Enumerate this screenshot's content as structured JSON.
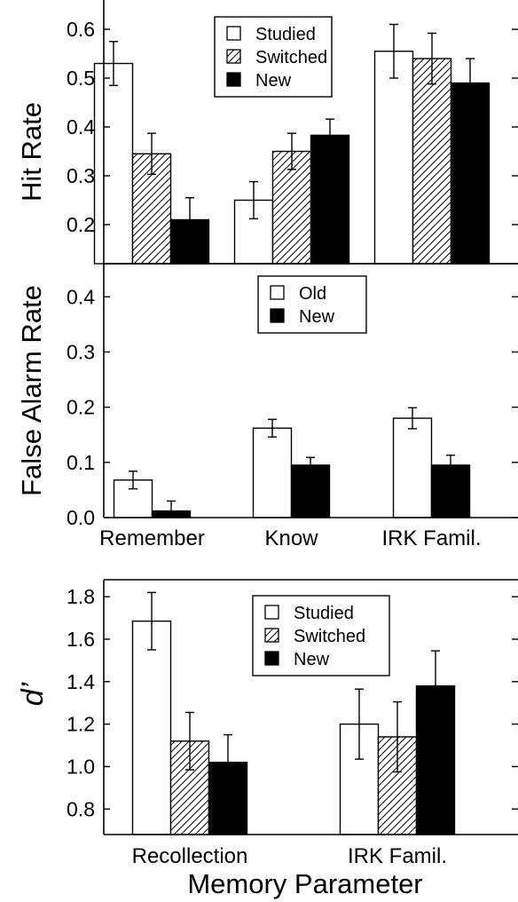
{
  "chart_data": [
    {
      "type": "bar",
      "ylabel": "Hit Rate",
      "categories": [
        "Remember",
        "Know",
        "IRK Famil."
      ],
      "ylim": [
        0.12,
        0.66
      ],
      "yticks": [
        "0.2",
        "0.3",
        "0.4",
        "0.5",
        "0.6"
      ],
      "legend": "top-center",
      "series": [
        {
          "name": "Studied",
          "pattern": "open",
          "values": [
            0.53,
            0.25,
            0.555
          ],
          "errors": [
            0.045,
            0.038,
            0.055
          ]
        },
        {
          "name": "Switched",
          "pattern": "hatched",
          "values": [
            0.345,
            0.35,
            0.54
          ],
          "errors": [
            0.042,
            0.037,
            0.052
          ]
        },
        {
          "name": "New",
          "pattern": "solid",
          "values": [
            0.21,
            0.383,
            0.49
          ],
          "errors": [
            0.045,
            0.033,
            0.05
          ]
        }
      ]
    },
    {
      "type": "bar",
      "ylabel": "False Alarm Rate",
      "categories": [
        "Remember",
        "Know",
        "IRK Famil."
      ],
      "ylim": [
        0.0,
        0.46
      ],
      "yticks": [
        "0.0",
        "0.1",
        "0.2",
        "0.3",
        "0.4"
      ],
      "legend": "top-center",
      "series": [
        {
          "name": "Old",
          "pattern": "open",
          "values": [
            0.068,
            0.162,
            0.18
          ],
          "errors": [
            0.016,
            0.016,
            0.019
          ]
        },
        {
          "name": "New",
          "pattern": "solid",
          "values": [
            0.012,
            0.095,
            0.095
          ],
          "errors": [
            0.018,
            0.014,
            0.018
          ]
        }
      ]
    },
    {
      "type": "bar",
      "ylabel": "d’",
      "xlabel": "Memory Parameter",
      "categories": [
        "Recollection",
        "IRK Famil."
      ],
      "ylim": [
        0.68,
        1.88
      ],
      "yticks": [
        "0.8",
        "1.0",
        "1.2",
        "1.4",
        "1.6",
        "1.8"
      ],
      "legend": "top-center",
      "series": [
        {
          "name": "Studied",
          "pattern": "open",
          "values": [
            1.685,
            1.2
          ],
          "errors": [
            0.135,
            0.165
          ]
        },
        {
          "name": "Switched",
          "pattern": "hatched",
          "values": [
            1.12,
            1.14
          ],
          "errors": [
            0.135,
            0.165
          ]
        },
        {
          "name": "New",
          "pattern": "solid",
          "values": [
            1.02,
            1.38
          ],
          "errors": [
            0.13,
            0.165
          ]
        }
      ]
    }
  ]
}
